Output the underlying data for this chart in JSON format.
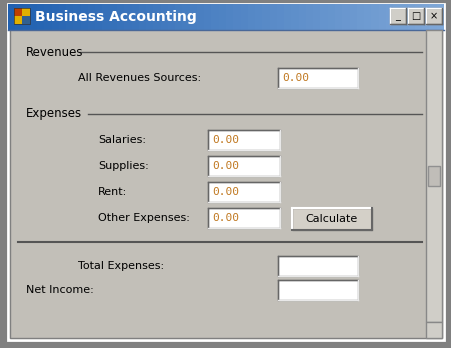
{
  "title": "Business Accounting",
  "bg_color": "#c2bfb8",
  "titlebar_color_left": "#2060b0",
  "titlebar_color_right": "#80a8d8",
  "titlebar_text_color": "#ffffff",
  "field_text_color": "#c07820",
  "label_color": "#000000",
  "button_bg": "#d4d0c8",
  "button_text": "Calculate",
  "labels": {
    "revenues_section": "Revenues",
    "all_revenues": "All Revenues Sources:",
    "expenses_section": "Expenses",
    "salaries": "Salaries:",
    "supplies": "Supplies:",
    "rent": "Rent:",
    "other_expenses": "Other Expenses:",
    "total_expenses": "Total Expenses:",
    "net_income": "Net Income:"
  },
  "field_values": {
    "all_revenues": "0.00",
    "salaries": "0.00",
    "supplies": "0.00",
    "rent": "0.00",
    "other_expenses": "0.00",
    "total_expenses": "",
    "net_income": ""
  },
  "figsize": [
    4.52,
    3.48
  ],
  "dpi": 100
}
